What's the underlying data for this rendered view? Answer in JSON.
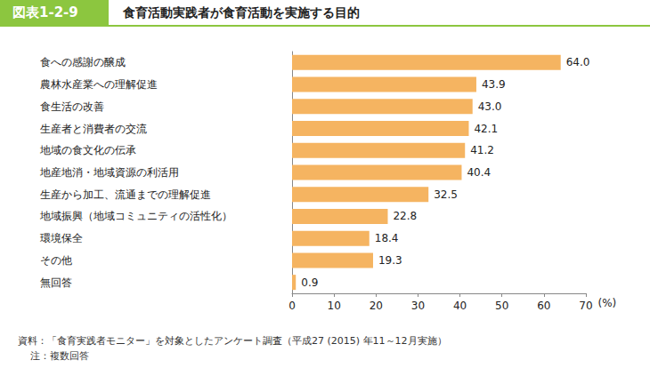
{
  "chart_data": {
    "type": "bar",
    "orientation": "horizontal",
    "badge": "図表1-2-9",
    "title": "食育活動実践者が食育活動を実施する目的",
    "categories": [
      "食への感謝の醸成",
      "農林水産業への理解促進",
      "食生活の改善",
      "生産者と消費者の交流",
      "地域の食文化の伝承",
      "地産地消・地域資源の利活用",
      "生産から加工、流通までの理解促進",
      "地域振興（地域コミュニティの活性化）",
      "環境保全",
      "その他",
      "無回答"
    ],
    "values": [
      64.0,
      43.9,
      43.0,
      42.1,
      41.2,
      40.4,
      32.5,
      22.8,
      18.4,
      19.3,
      0.9
    ],
    "value_labels": [
      "64.0",
      "43.9",
      "43.0",
      "42.1",
      "41.2",
      "40.4",
      "32.5",
      "22.8",
      "18.4",
      "19.3",
      "0.9"
    ],
    "color": "#f5b461",
    "x_label": "(%)",
    "xlim": [
      0,
      70
    ],
    "xticks": [
      0,
      10,
      20,
      30,
      40,
      50,
      60,
      70
    ],
    "grid": false,
    "data_labels": true,
    "source": "資料：「食育実践者モニター」を対象としたアンケート調査（平成27 (2015) 年11～12月実施）",
    "note": "注：複数回答"
  }
}
